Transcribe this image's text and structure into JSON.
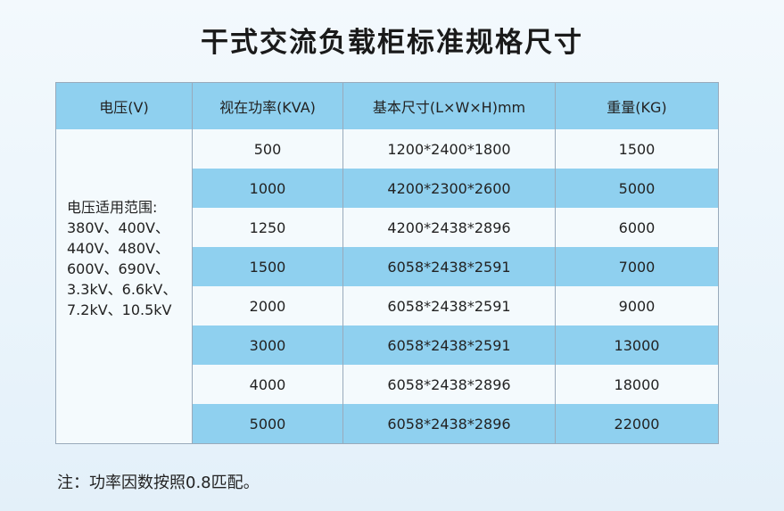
{
  "title": "干式交流负载柜标准规格尺寸",
  "table": {
    "headers": [
      "电压(V)",
      "视在功率(KVA)",
      "基本尺寸(L×W×H)mm",
      "重量(KG)"
    ],
    "voltage_range": {
      "label": "电压适用范围:",
      "lines": [
        "380V、400V、",
        "440V、480V、",
        "600V、690V、",
        "3.3kV、6.6kV、",
        "7.2kV、10.5kV"
      ]
    },
    "rows": [
      {
        "power": "500",
        "size": "1200*2400*1800",
        "weight": "1500"
      },
      {
        "power": "1000",
        "size": "4200*2300*2600",
        "weight": "5000"
      },
      {
        "power": "1250",
        "size": "4200*2438*2896",
        "weight": "6000"
      },
      {
        "power": "1500",
        "size": "6058*2438*2591",
        "weight": "7000"
      },
      {
        "power": "2000",
        "size": "6058*2438*2591",
        "weight": "9000"
      },
      {
        "power": "3000",
        "size": "6058*2438*2591",
        "weight": "13000"
      },
      {
        "power": "4000",
        "size": "6058*2438*2896",
        "weight": "18000"
      },
      {
        "power": "5000",
        "size": "6058*2438*2896",
        "weight": "22000"
      }
    ]
  },
  "note": "注：功率因数按照0.8匹配。",
  "colors": {
    "header_bg": "#8fd0ef",
    "stripe": "#8fd0ef"
  }
}
